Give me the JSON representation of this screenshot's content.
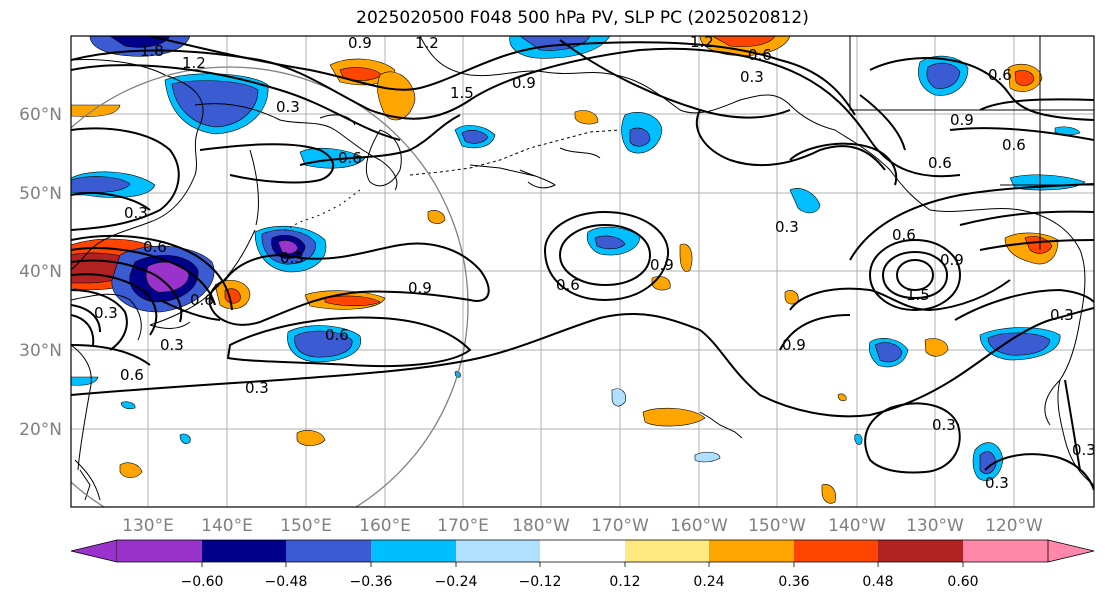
{
  "title": "2025020500 F048 500 hPa PV, SLP PC (2025020812)",
  "lat_labels": [
    "60°N",
    "50°N",
    "40°N",
    "30°N",
    "20°N"
  ],
  "lon_labels": [
    "130°E",
    "140°E",
    "150°E",
    "160°E",
    "170°E",
    "180°W",
    "170°W",
    "160°W",
    "150°W",
    "140°W",
    "130°W",
    "120°W"
  ],
  "colorbar": {
    "ticks": [
      "−0.60",
      "−0.48",
      "−0.36",
      "−0.24",
      "−0.12",
      "0.12",
      "0.24",
      "0.36",
      "0.48",
      "0.60"
    ],
    "colors": [
      "#9933cc",
      "#00008b",
      "#3a5bd1",
      "#00bfff",
      "#b0e0ff",
      "#ffffff",
      "#ffe980",
      "#ffa500",
      "#ff4500",
      "#b22222",
      "#ff88aa"
    ]
  },
  "contour_labels": [
    "1.8",
    "1.2",
    "0.9",
    "1.2",
    "0.6",
    "0.3",
    "1.5",
    "0.9",
    "0.3",
    "0.6",
    "0.9",
    "0.6",
    "0.6",
    "0.3",
    "0.6",
    "0.3",
    "0.6",
    "0.3",
    "0.9",
    "0.3",
    "0.6",
    "0.6",
    "0.9",
    "0.3",
    "0.6",
    "0.9",
    "0.3",
    "0.3",
    "0.6",
    "0.3",
    "1.2",
    "1.5",
    "0.6",
    "0.9",
    "0.3",
    "0.3"
  ]
}
